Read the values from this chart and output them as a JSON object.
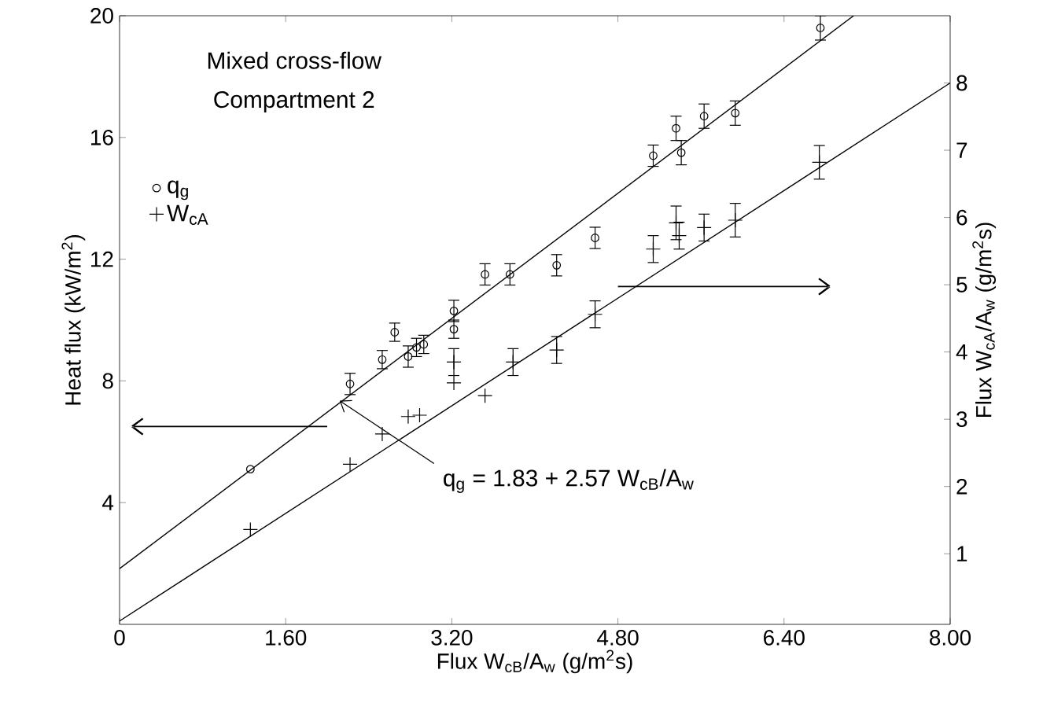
{
  "chart_data": {
    "type": "scatter",
    "xlabel": "Flux W$_{cB}$/A$_{w}$ (g/m$^{2}$s)",
    "ylabel": "Heat flux  (kW/m$^{2}$)",
    "y2label": "Flux W$_{cA}$/A$_{w}$ (g/m$^{2}$s)",
    "xlim": [
      0,
      8
    ],
    "xticks": [
      {
        "value": 0,
        "label": "0"
      },
      {
        "value": 1.6,
        "label": "1.60"
      },
      {
        "value": 3.2,
        "label": "3.20"
      },
      {
        "value": 4.8,
        "label": "4.80"
      },
      {
        "value": 6.4,
        "label": "6.40"
      },
      {
        "value": 8,
        "label": "8.00"
      }
    ],
    "ylim": [
      0,
      20
    ],
    "yticks": [
      4,
      8,
      12,
      16,
      20
    ],
    "y2lim": [
      -0.05,
      9.0
    ],
    "y2ticks": [
      1,
      2,
      3,
      4,
      5,
      6,
      7,
      8
    ],
    "legend": "left",
    "series": [
      {
        "name": "q$_{g}$",
        "color": "#000000",
        "marker": "circle",
        "x": [
          1.26,
          2.22,
          2.53,
          2.65,
          2.78,
          2.86,
          2.93,
          3.22,
          3.22,
          3.52,
          3.76,
          4.21,
          4.58,
          5.14,
          5.36,
          5.41,
          5.63,
          5.93,
          6.75
        ],
        "values": [
          5.1,
          7.9,
          8.7,
          9.6,
          8.8,
          9.1,
          9.2,
          10.3,
          9.7,
          11.5,
          11.5,
          11.8,
          12.7,
          15.4,
          16.3,
          15.5,
          16.7,
          16.8,
          19.6
        ],
        "errors": [
          null,
          0.35,
          0.3,
          0.3,
          0.35,
          0.3,
          0.3,
          0.35,
          0.3,
          0.35,
          0.35,
          0.35,
          0.35,
          0.35,
          0.4,
          0.4,
          0.4,
          0.4,
          0.4
        ]
      },
      {
        "name": "W$_{cA}$",
        "color": "#000000",
        "marker": "plus",
        "axis": "y2",
        "x": [
          1.26,
          2.22,
          2.53,
          2.78,
          2.89,
          3.22,
          3.22,
          3.52,
          3.79,
          4.21,
          4.58,
          5.14,
          5.36,
          5.39,
          5.63,
          5.93,
          6.74
        ],
        "values": [
          1.36,
          2.33,
          2.78,
          3.04,
          3.06,
          3.85,
          3.54,
          3.35,
          3.85,
          4.03,
          4.56,
          5.53,
          5.92,
          5.73,
          5.85,
          5.96,
          6.82
        ],
        "errors": [
          null,
          null,
          null,
          null,
          null,
          0.2,
          null,
          null,
          0.2,
          0.2,
          0.2,
          0.2,
          0.25,
          0.2,
          0.2,
          0.25,
          0.25
        ]
      },
      {
        "type": "line",
        "color": "#000000",
        "marker": "none",
        "x": [
          0,
          7.07
        ],
        "values": [
          1.83,
          20
        ]
      },
      {
        "type": "line",
        "color": "#000000",
        "marker": "none",
        "axis": "y2",
        "x": [
          0,
          8
        ],
        "values": [
          0,
          8
        ]
      }
    ],
    "annotations": [
      "Mixed cross-flow",
      "Compartment 2",
      {
        "text": "q$_{g}$ = 1.83 + 2.57 W$_{cB}$/A$_{w}$",
        "x": 2.12,
        "y": 7.35
      }
    ]
  }
}
